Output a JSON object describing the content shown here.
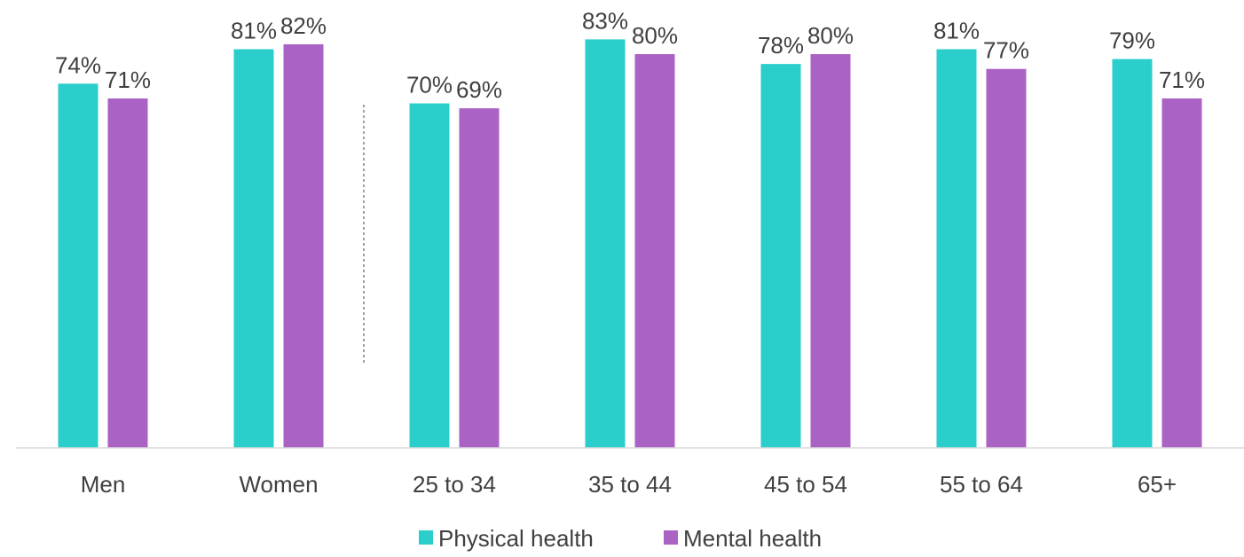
{
  "chart_data": {
    "type": "bar",
    "title": "",
    "xlabel": "",
    "ylabel": "",
    "ylim": [
      0,
      91
    ],
    "grid": false,
    "legend_position": "bottom",
    "categories": [
      "Men",
      "Women",
      "25 to 34",
      "35 to 44",
      "45 to 54",
      "55 to 64",
      "65+"
    ],
    "series": [
      {
        "name": "Physical health",
        "color": "#2ACECB",
        "values": [
          74,
          81,
          70,
          83,
          78,
          81,
          79
        ],
        "labels": [
          "74%",
          "81%",
          "70%",
          "83%",
          "78%",
          "81%",
          "79%"
        ]
      },
      {
        "name": "Mental health",
        "color": "#AB62C5",
        "values": [
          71,
          82,
          69,
          80,
          80,
          77,
          71
        ],
        "labels": [
          "71%",
          "82%",
          "69%",
          "80%",
          "80%",
          "77%",
          "71%"
        ]
      }
    ],
    "separator_after_category": "Women"
  }
}
